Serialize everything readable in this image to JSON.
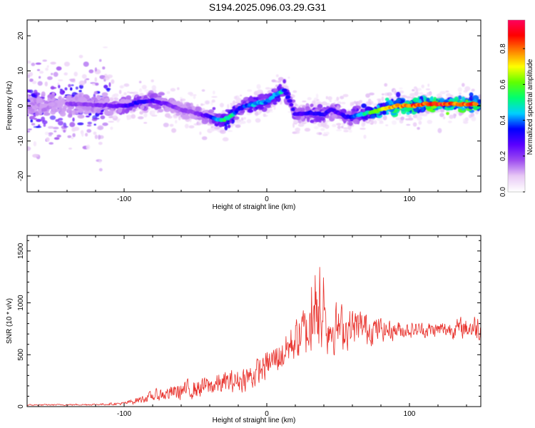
{
  "title": "S194.2025.096.03.29.G31",
  "colors": {
    "snr_line": "#e8302a",
    "colormap": [
      "#ffffff",
      "#e8c8f5",
      "#9d4cf0",
      "#5a00ff",
      "#0000ff",
      "#00d0ff",
      "#00ff70",
      "#60ff00",
      "#ffff00",
      "#ff8000",
      "#ff0000",
      "#ff0060"
    ]
  },
  "chart_data": [
    {
      "type": "heatmap",
      "xlabel": "Height of straight line (km)",
      "ylabel": "Frequency (Hz)",
      "xlim": [
        -168,
        150
      ],
      "ylim": [
        -24.5,
        24.5
      ],
      "x_ticks": [
        -100,
        0,
        100
      ],
      "y_ticks": [
        -20,
        -10,
        0,
        10,
        20
      ],
      "colorbar": {
        "label": "Normalized spectral amplitude",
        "range": [
          0.0,
          0.96
        ],
        "ticks": [
          0.0,
          0.2,
          0.4,
          0.6,
          0.8
        ]
      },
      "ridge": {
        "x": [
          -168,
          -150,
          -130,
          -110,
          -100,
          -90,
          -80,
          -70,
          -60,
          -50,
          -40,
          -35,
          -30,
          -25,
          -20,
          -15,
          -10,
          -5,
          0,
          5,
          10,
          12,
          15,
          20,
          30,
          40,
          45,
          50,
          55,
          60,
          70,
          80,
          90,
          100,
          110,
          120,
          130,
          140,
          150
        ],
        "frequency": [
          0.5,
          0.5,
          0.5,
          0.0,
          0.0,
          1.0,
          1.5,
          0.5,
          -1.0,
          -2.0,
          -3.0,
          -4.0,
          -4.0,
          -3.0,
          -1.0,
          0.0,
          0.5,
          1.0,
          1.0,
          3.0,
          4.0,
          5.0,
          2.5,
          -2.5,
          -2.0,
          -2.5,
          -1.0,
          -2.0,
          -3.0,
          -3.0,
          -2.0,
          -1.0,
          0.0,
          0.0,
          0.5,
          0.5,
          0.5,
          0.5,
          0.5
        ],
        "amplitude": [
          0.25,
          0.22,
          0.2,
          0.25,
          0.3,
          0.35,
          0.3,
          0.25,
          0.2,
          0.22,
          0.3,
          0.45,
          0.6,
          0.55,
          0.35,
          0.4,
          0.45,
          0.5,
          0.4,
          0.45,
          0.5,
          0.4,
          0.35,
          0.3,
          0.35,
          0.35,
          0.3,
          0.3,
          0.35,
          0.4,
          0.55,
          0.75,
          0.85,
          0.9,
          0.92,
          0.95,
          0.9,
          0.92,
          0.85
        ]
      }
    },
    {
      "type": "line",
      "xlabel": "Height of straight line (km)",
      "ylabel": "SNR (10 * v/v)",
      "xlim": [
        -168,
        150
      ],
      "ylim": [
        0,
        1650
      ],
      "x_ticks": [
        -100,
        0,
        100
      ],
      "y_ticks": [
        0,
        500,
        1000,
        1500
      ],
      "envelope": {
        "x": [
          -168,
          -120,
          -100,
          -80,
          -60,
          -40,
          -20,
          -10,
          0,
          10,
          20,
          30,
          35,
          40,
          50,
          60,
          70,
          80,
          100,
          120,
          140,
          150
        ],
        "mean": [
          15,
          20,
          30,
          100,
          150,
          200,
          250,
          300,
          400,
          500,
          650,
          750,
          800,
          780,
          760,
          760,
          760,
          740,
          740,
          740,
          760,
          760
        ],
        "spread": [
          8,
          10,
          20,
          70,
          120,
          140,
          150,
          180,
          180,
          220,
          280,
          380,
          450,
          380,
          300,
          250,
          220,
          150,
          100,
          100,
          140,
          200
        ]
      }
    }
  ]
}
